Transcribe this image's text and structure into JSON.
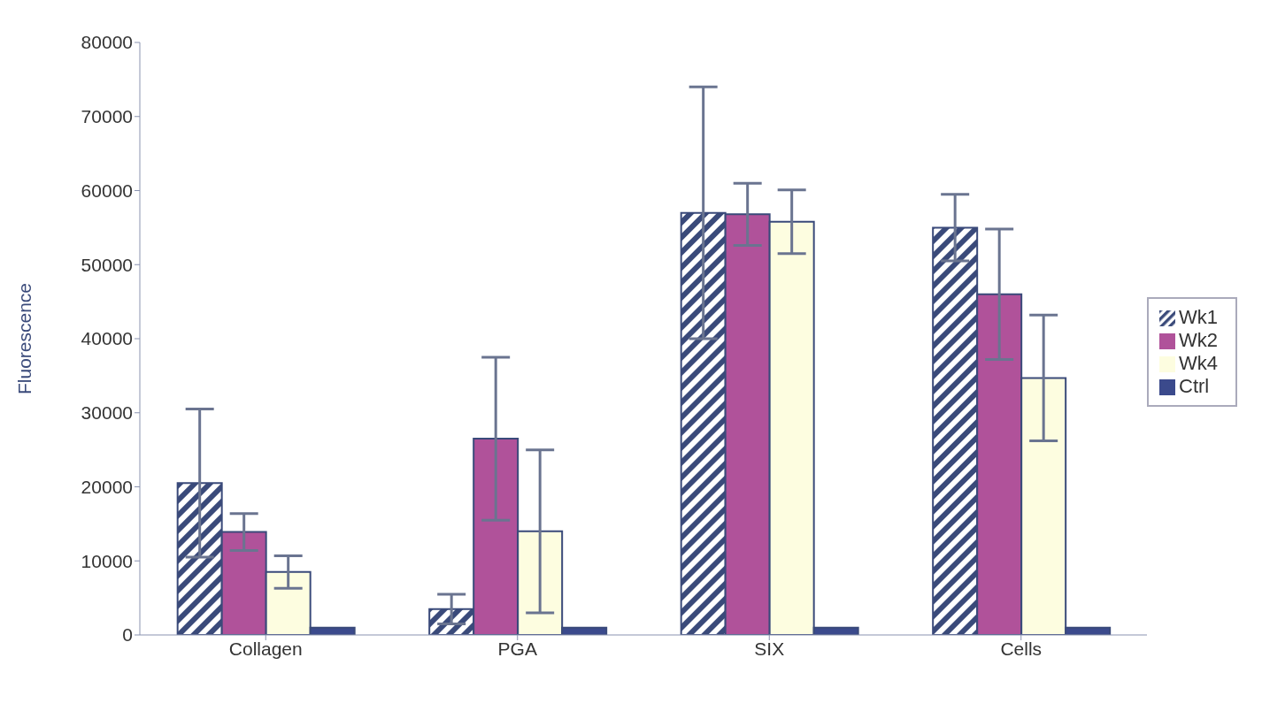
{
  "chart_data": {
    "type": "bar",
    "ylabel": "Fluorescence",
    "categories": [
      "Collagen",
      "PGA",
      "SIX",
      "Cells"
    ],
    "series": [
      {
        "name": "Wk1",
        "color": "#3a4a7a",
        "values": [
          20500,
          3500,
          57000,
          55000
        ],
        "errors": [
          10000,
          2000,
          17000,
          4500
        ]
      },
      {
        "name": "Wk2",
        "color": "#b0529a",
        "values": [
          13900,
          26500,
          56800,
          46000
        ],
        "errors": [
          2500,
          11000,
          4200,
          8800
        ]
      },
      {
        "name": "Wk4",
        "color": "#fdfde0",
        "values": [
          8500,
          14000,
          55800,
          34700
        ],
        "errors": [
          2200,
          11000,
          4300,
          8500
        ]
      },
      {
        "name": "Ctrl",
        "color": "#3b4a8c",
        "values": [
          1000,
          1000,
          1000,
          1000
        ]
      }
    ],
    "ylim": [
      0,
      80000
    ],
    "yticks": [
      0,
      10000,
      20000,
      30000,
      40000,
      50000,
      60000,
      70000,
      80000
    ],
    "legend": "right"
  }
}
